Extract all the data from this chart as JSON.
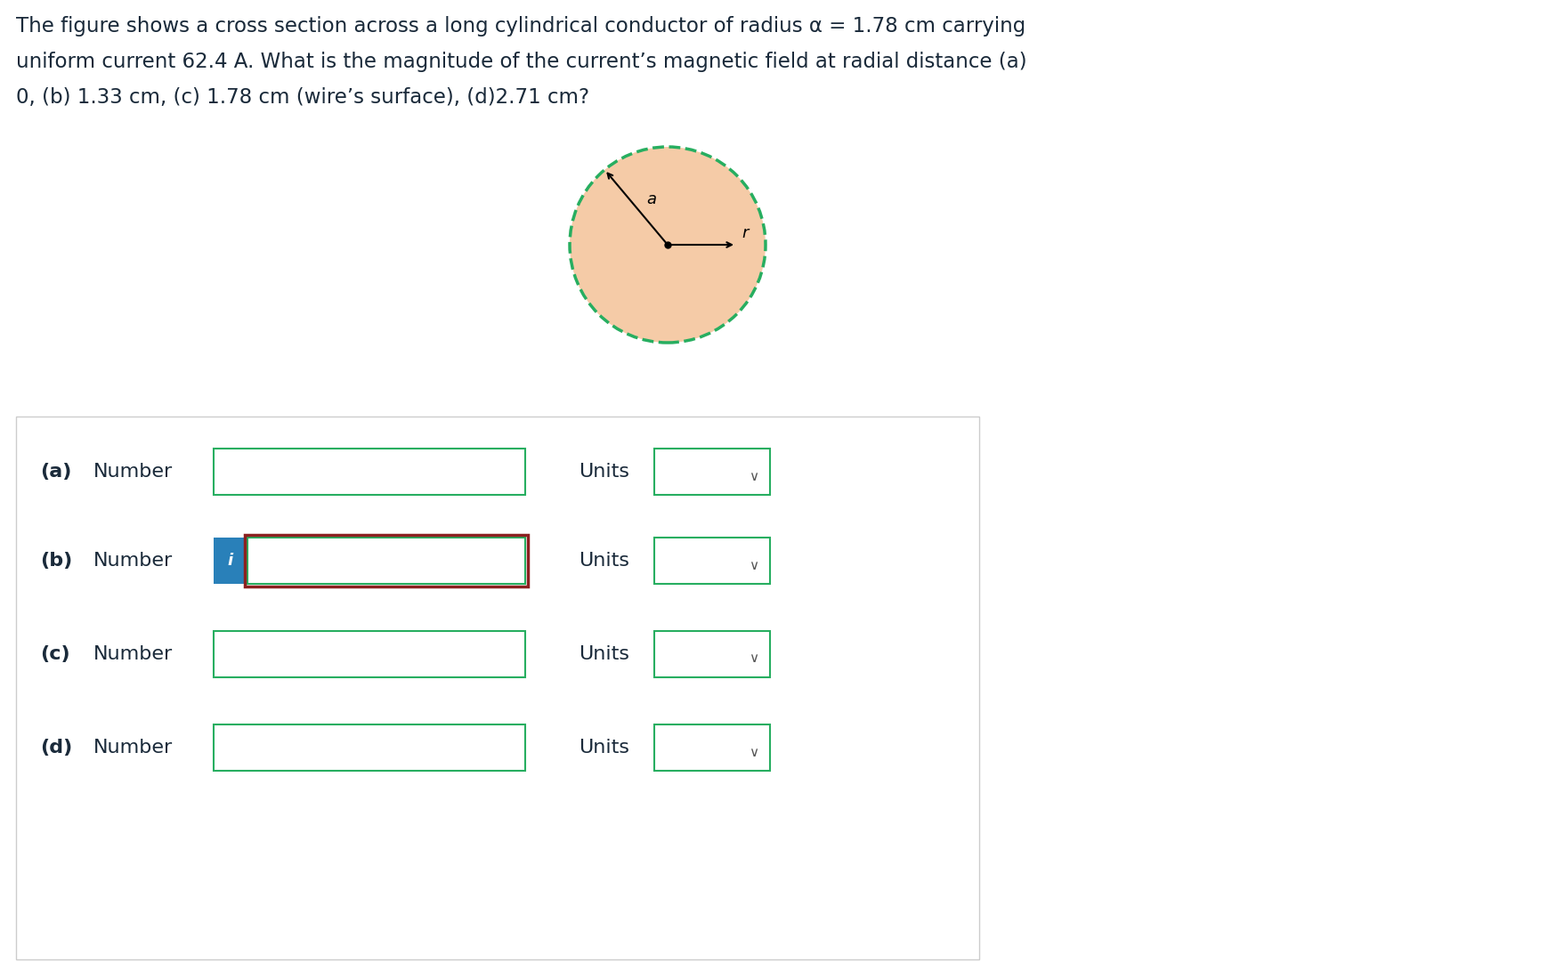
{
  "title_line1": "The figure shows a cross section across a long cylindrical conductor of radius α = 1.78 cm carrying",
  "title_line2": "uniform current 62.4 A. What is the magnitude of the current’s magnetic field at radial distance (a)",
  "title_line3": "0, (b) 1.33 cm, (c) 1.78 cm (wire’s surface), (d)2.71 cm?",
  "circle_fill_color": "#f5cba7",
  "circle_edge_color": "#27ae60",
  "label_a": "a",
  "label_r": "r",
  "rows": [
    {
      "label": "(a)",
      "has_info": false,
      "has_red_border": false
    },
    {
      "label": "(b)",
      "has_info": true,
      "has_red_border": true
    },
    {
      "label": "(c)",
      "has_info": false,
      "has_red_border": false
    },
    {
      "label": "(d)",
      "has_info": false,
      "has_red_border": false
    }
  ],
  "row_label_text": "Number",
  "units_label_text": "Units",
  "input_box_border_color": "#27ae60",
  "red_border_color": "#8b2020",
  "info_button_color": "#2980b9",
  "info_text_color": "#ffffff",
  "background_color": "#ffffff",
  "panel_border_color": "#cccccc",
  "text_color": "#1a2a3a",
  "chevron_color": "#555555"
}
